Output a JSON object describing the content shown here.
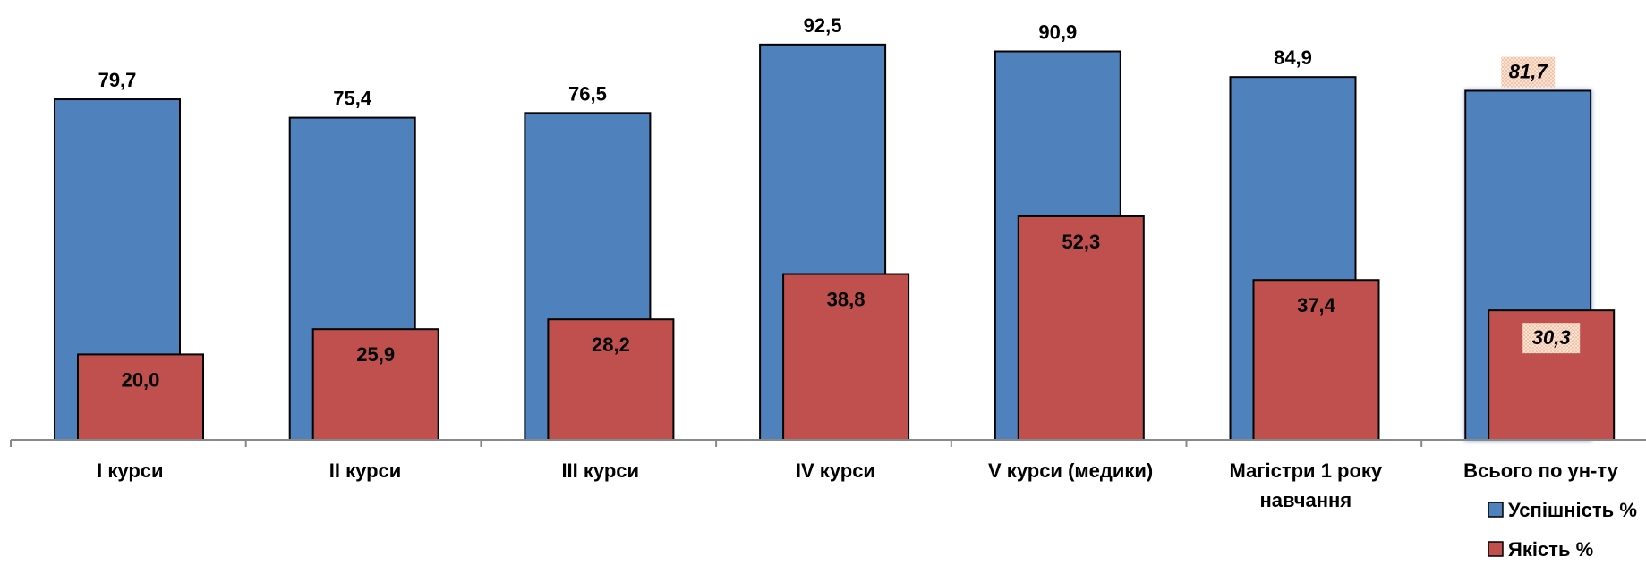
{
  "chart_data": {
    "type": "bar",
    "categories": [
      [
        "I курси"
      ],
      [
        "II курси"
      ],
      [
        "III курси"
      ],
      [
        "IV курси"
      ],
      [
        "V курси (медики)"
      ],
      [
        "Магістри 1 року",
        "навчання"
      ],
      [
        "Всього по ун-ту"
      ]
    ],
    "series": [
      {
        "name": "Успішність %",
        "color": "#4f81bd",
        "values": [
          79.7,
          75.4,
          76.5,
          92.5,
          90.9,
          84.9,
          81.7
        ],
        "labels": [
          "79,7",
          "75,4",
          "76,5",
          "92,5",
          "90,9",
          "84,9",
          "81,7"
        ]
      },
      {
        "name": "Якість %",
        "color": "#c0504d",
        "values": [
          20.0,
          25.9,
          28.2,
          38.8,
          52.3,
          37.4,
          30.3
        ],
        "labels": [
          "20,0",
          "25,9",
          "28,2",
          "38,8",
          "52,3",
          "37,4",
          "30,3"
        ]
      }
    ],
    "ylim": [
      0,
      100
    ],
    "grid": false,
    "legend": "bottom-right",
    "highlight_category_index": 6
  }
}
